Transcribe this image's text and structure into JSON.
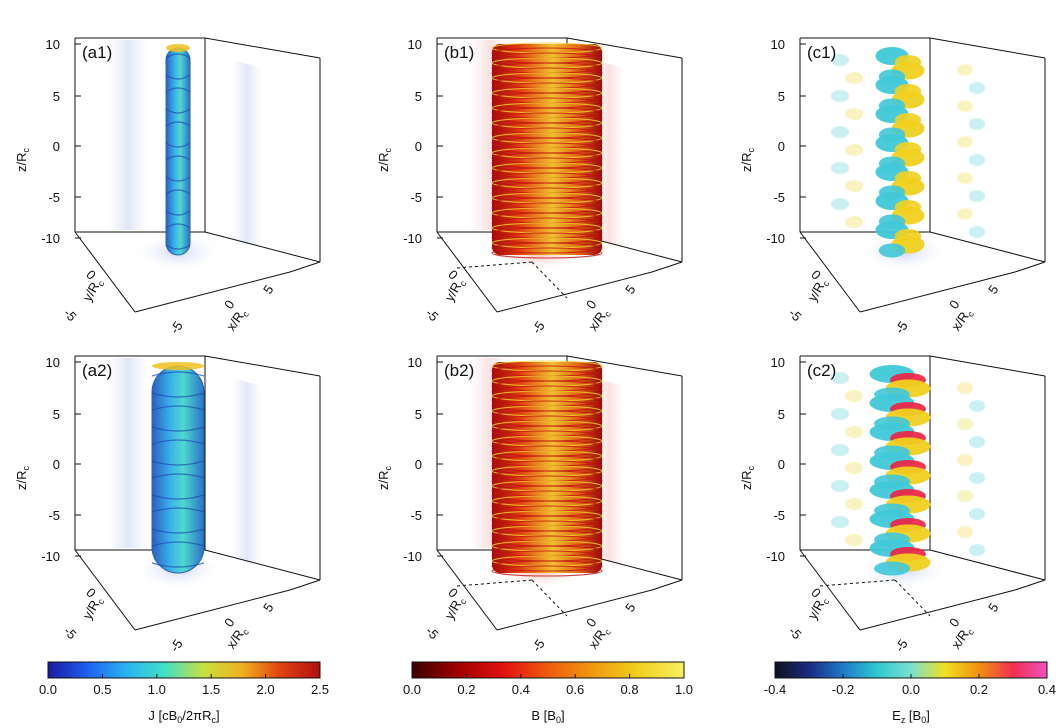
{
  "figure": {
    "panels": [
      {
        "id": "a1",
        "label": "(a1)",
        "quantity": "J",
        "style": "current",
        "dashed_origin": false
      },
      {
        "id": "b1",
        "label": "(b1)",
        "quantity": "B",
        "style": "field",
        "dashed_origin": true
      },
      {
        "id": "c1",
        "label": "(c1)",
        "quantity": "Ez",
        "style": "efield",
        "dashed_origin": false
      },
      {
        "id": "a2",
        "label": "(a2)",
        "quantity": "J",
        "style": "current",
        "dashed_origin": false
      },
      {
        "id": "b2",
        "label": "(b2)",
        "quantity": "B",
        "style": "field",
        "dashed_origin": true
      },
      {
        "id": "c2",
        "label": "(c2)",
        "quantity": "Ez",
        "style": "efield",
        "dashed_origin": true
      }
    ],
    "axes": {
      "z_label": "z/R",
      "z_sub": "c",
      "y_label": "y/R",
      "y_sub": "c",
      "x_label": "x/R",
      "x_sub": "c",
      "z_ticks": [
        "10",
        "5",
        "0",
        "-5",
        "-10"
      ],
      "y_ticks": [
        "-5",
        "0"
      ],
      "x_ticks": [
        "-5",
        "0",
        "5"
      ]
    },
    "colorbars": [
      {
        "id": "J",
        "ticks": [
          "0.0",
          "0.5",
          "1.0",
          "1.5",
          "2.0",
          "2.5"
        ],
        "title_main": "J [cB",
        "title_sub": "0",
        "title_rest": "/2πR",
        "title_sub2": "c",
        "title_end": "]",
        "stops": [
          "#1a1aa0",
          "#1e5ef0",
          "#2ab2f0",
          "#40e0c8",
          "#c8e040",
          "#f0b020",
          "#e04010",
          "#b01010"
        ]
      },
      {
        "id": "B",
        "ticks": [
          "0.0",
          "0.2",
          "0.4",
          "0.6",
          "0.8",
          "1.0"
        ],
        "title_main": "B [B",
        "title_sub": "0",
        "title_rest": "]",
        "title_sub2": "",
        "title_end": "",
        "stops": [
          "#3a0000",
          "#a00000",
          "#e01010",
          "#f05a10",
          "#f09a10",
          "#f0d020",
          "#f8f060"
        ]
      },
      {
        "id": "Ez",
        "ticks": [
          "-0.4",
          "-0.2",
          "0.0",
          "0.2",
          "0.4"
        ],
        "title_main": "E",
        "title_sub": "z",
        "title_rest": " [B",
        "title_sub2": "0",
        "title_end": "]",
        "stops": [
          "#10101e",
          "#1a2a80",
          "#1e7ac8",
          "#30c8d0",
          "#7ae0d0",
          "#f0e020",
          "#f09010",
          "#f03050",
          "#f050c0"
        ]
      }
    ],
    "colors": {
      "current_tube": "#3aa8e0",
      "current_edge": "#2a60c0",
      "field_red": "#c01010",
      "field_yellow": "#f0d030",
      "ez_cyan": "#40c8d8",
      "ez_yellow": "#f0d020",
      "ez_red": "#f02040"
    }
  }
}
